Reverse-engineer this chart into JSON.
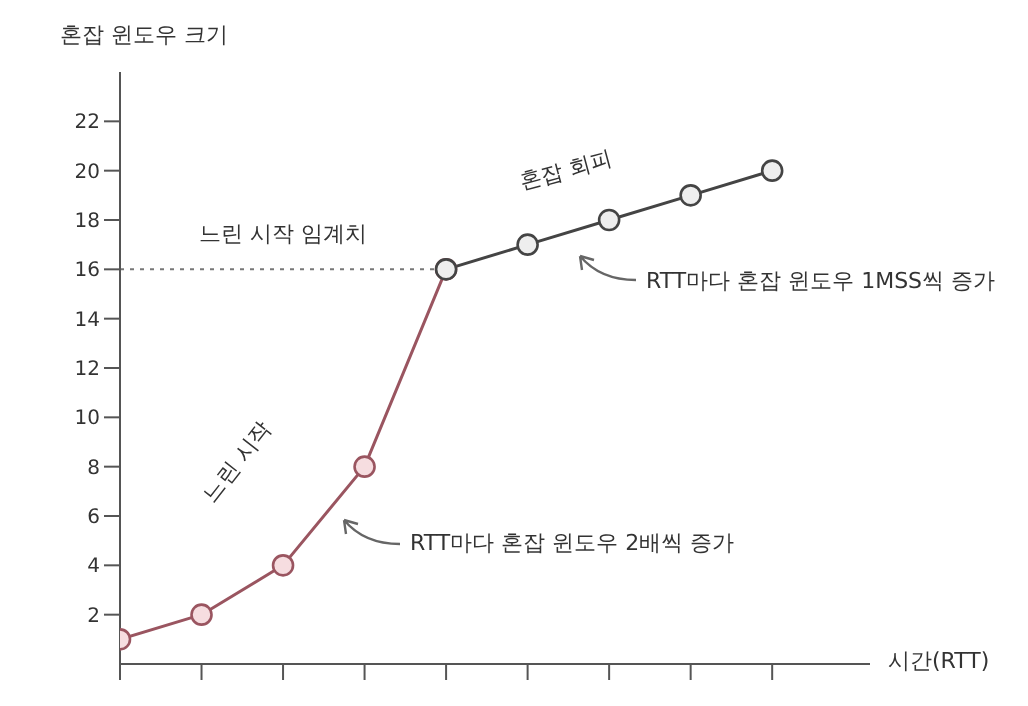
{
  "chart_data": {
    "type": "line",
    "ylabel": "혼잡 윈도우 크기",
    "xlabel": "시간(RTT)",
    "categories": [
      null,
      null,
      null,
      null,
      null,
      null,
      null,
      null,
      null
    ],
    "series": [
      {
        "color": "#9a5560",
        "values": [
          1,
          2,
          4,
          8,
          16,
          null,
          null,
          null,
          null
        ]
      },
      {
        "color": "#444444",
        "values": [
          null,
          null,
          null,
          null,
          16,
          17,
          18,
          19,
          20
        ]
      }
    ],
    "ylim": [
      0,
      24
    ],
    "yticks": [
      2,
      4,
      6,
      8,
      10,
      12,
      14,
      16,
      18,
      20,
      22
    ],
    "grid": false,
    "marker": "circle",
    "line_style": "solid",
    "legend": false,
    "ref_lines": [
      {
        "axis": "y",
        "value": 16,
        "label": "느린 시작 임계치",
        "line_style": "dotted",
        "color": "#777777"
      }
    ],
    "annotations": [
      "느린 시작",
      "혼잡 회피",
      "RTT마다 혼잡 윈도우 2배씩 증가",
      "RTT마다 혼잡 윈도우 1MSS씩 증가"
    ]
  }
}
